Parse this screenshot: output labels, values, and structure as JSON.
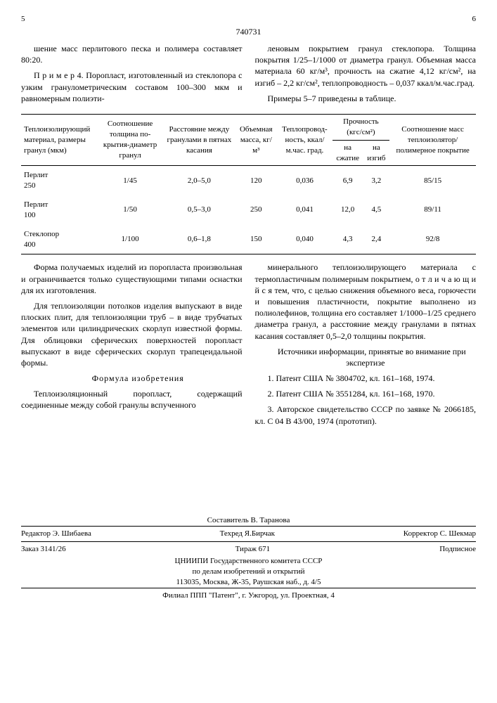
{
  "page_left": "5",
  "page_right": "6",
  "doc_number": "740731",
  "top_left_col": [
    "шение масс перлитового песка и полимера составляет 80:20.",
    "П р и м е р 4. Поропласт, изготовленный из стеклопора с узким гранулометрическим составом 100–300 мкм и равномерным полиэти-"
  ],
  "top_right_col": [
    "леновым покрытием гранул стеклопора. Толщина покрытия 1/25–1/1000 от диаметра гранул. Объемная масса материала 60 кг/м³, прочность на сжатие 4,12 кг/см², на изгиб – 2,2 кг/см², теплопроводность – 0,037 ккал/м.час.град.",
    "Примеры 5–7 приведены в таблице."
  ],
  "table": {
    "headers": {
      "c1": "Теплоизо­лирующий материал, размеры гранул (мкм)",
      "c2": "Соотно­шение толщи­на по­крытия-диаметр гранул",
      "c3": "Расстояние между гра­нулами в пятнах касания",
      "c4": "Объем­ная масса, кг/м³",
      "c5": "Тепло­провод­ность, ккал/ м.час. град.",
      "c6": "Прочность (кгс/см²)",
      "c6a": "на сжатие",
      "c6b": "на изгиб",
      "c7": "Соотношение масс теплоизо­лятор/полимер­ное покрытие"
    },
    "rows": [
      {
        "mat": "Перлит",
        "size": "250",
        "ratio": "1/45",
        "dist": "2,0–5,0",
        "mass": "120",
        "cond": "0,036",
        "comp": "6,9",
        "bend": "3,2",
        "mix": "85/15"
      },
      {
        "mat": "Перлит",
        "size": "100",
        "ratio": "1/50",
        "dist": "0,5–3,0",
        "mass": "250",
        "cond": "0,041",
        "comp": "12,0",
        "bend": "4,5",
        "mix": "89/11"
      },
      {
        "mat": "Стеклопор",
        "size": "400",
        "ratio": "1/100",
        "dist": "0,6–1,8",
        "mass": "150",
        "cond": "0,040",
        "comp": "4,3",
        "bend": "2,4",
        "mix": "92/8"
      }
    ]
  },
  "mid_left_col": [
    "Форма получаемых изделий из поропласта произвольная и ограничивается только существующими типами оснастки для их изготовления.",
    "Для теплоизоляции потолков изделия выпускают в виде плоских плит, для теплоизоляции труб – в виде трубчатых элементов или цилиндрических скорлуп известной формы. Для облицовки сферических поверхностей поропласт выпускают в виде сферических скорлуп трапецеидальной формы."
  ],
  "formula_title": "Формула изобретения",
  "formula_left": "Теплоизоляционный поропласт, содержащий соединенные между собой гранулы вспученного",
  "mid_right_col": [
    "минерального теплоизолирующего материала с термопластичным полимерным покрытием, о т ­л и ч а ю щ и й с я  тем, что, с целью снижения объемного веса, горючести и повышения пластичности, покрытие выполнено из полиолефинов, толщина его составляет 1/1000–1/25 среднего диаметра гранул, а расстояние между гранулами в пятнах касания составляет 0,5–2,0 толщины покрытия."
  ],
  "sources_title": "Источники информации, принятые во внимание при экспертизе",
  "sources": [
    "1. Патент США № 3804702, кл. 161–168, 1974.",
    "2. Патент США № 3551284, кл. 161–168, 1970.",
    "3. Авторское свидетельство СССР по заявке № 2066185, кл. C 04 B 43/00, 1974 (прототип)."
  ],
  "footer": {
    "compiler": "Составитель В. Таранова",
    "editor": "Редактор Э. Шибаева",
    "techred": "Техред    Я.Бирчак",
    "corrector": "Корректор С. Шекмар",
    "order": "Заказ 3141/26",
    "tirazh": "Тираж 671",
    "podpisnoe": "Подписное",
    "org1": "ЦНИИПИ Государственного комитета СССР",
    "org2": "по делам изобретений и открытий",
    "addr": "113035, Москва, Ж-35, Раушская наб., д. 4/5",
    "branch": "Филиал ППП \"Патент\", г. Ужгород, ул. Проектная, 4"
  }
}
